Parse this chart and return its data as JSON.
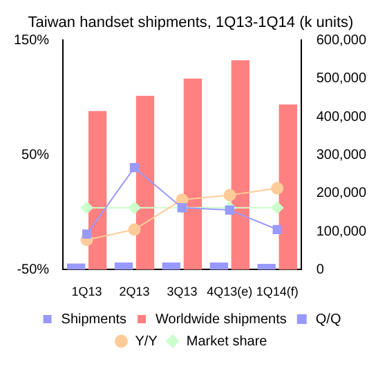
{
  "chart_data": {
    "type": "bar",
    "title": "Taiwan handset shipments, 1Q13-1Q14 (k units)",
    "categories": [
      "1Q13",
      "2Q13",
      "3Q13",
      "4Q13(e)",
      "1Q14(f)"
    ],
    "series": [
      {
        "name": "Shipments",
        "axis": "y2",
        "color": "#9999ff",
        "values": [
          16000,
          19000,
          19000,
          19000,
          15000
        ]
      },
      {
        "name": "Worldwide shipments",
        "axis": "y2",
        "color": "#ff8080",
        "values": [
          415000,
          455000,
          500000,
          548000,
          432000
        ]
      },
      {
        "name": "Q/Q",
        "type": "line",
        "color": "#9999ff",
        "marker": "square",
        "values": [
          -19,
          39,
          4,
          2,
          -15
        ]
      },
      {
        "name": "Y/Y",
        "type": "line",
        "color": "#ffcc99",
        "marker": "circle",
        "values": [
          -24,
          -15,
          11,
          15,
          21
        ]
      },
      {
        "name": "Market share",
        "type": "line",
        "color": "#ccffcc",
        "marker": "diamond",
        "values": [
          4,
          4,
          4,
          4,
          4
        ]
      }
    ],
    "ylim": [
      -50,
      150
    ],
    "yticks": [
      {
        "value": -50,
        "label": "-50%"
      },
      {
        "value": 50,
        "label": "50%"
      },
      {
        "value": 150,
        "label": "150%"
      }
    ],
    "y2lim": [
      0,
      600000
    ],
    "y2ticks": [
      {
        "value": 0,
        "label": "0"
      },
      {
        "value": 100000,
        "label": "100,000"
      },
      {
        "value": 200000,
        "label": "200,000"
      },
      {
        "value": 300000,
        "label": "300,000"
      },
      {
        "value": 400000,
        "label": "400,000"
      },
      {
        "value": 500000,
        "label": "500,000"
      },
      {
        "value": 600000,
        "label": "600,000"
      }
    ],
    "grid": false,
    "legend": "bottom"
  }
}
